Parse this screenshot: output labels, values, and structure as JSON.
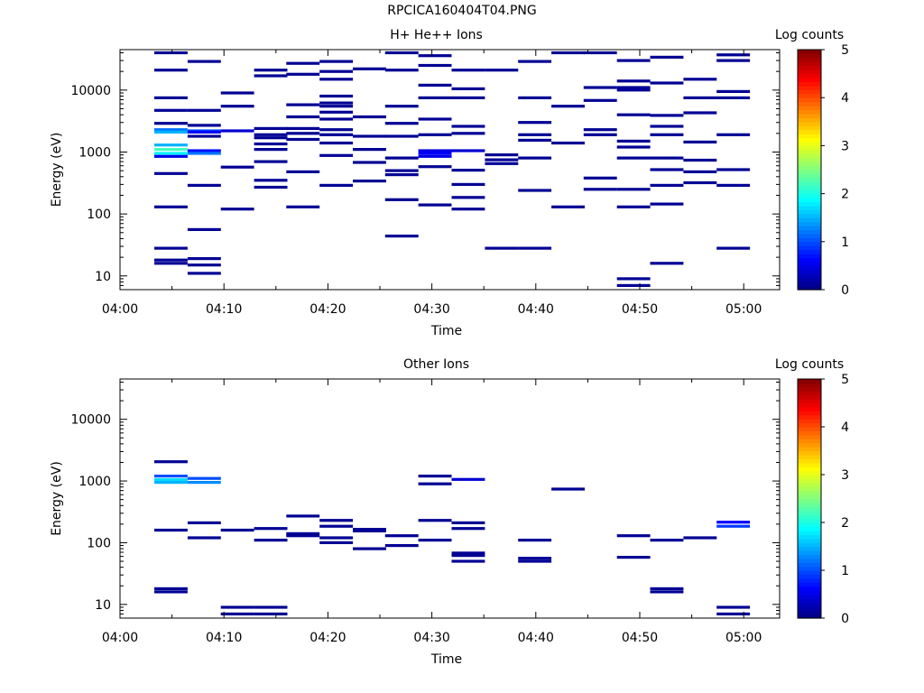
{
  "page_title": "RPCICA160404T04.PNG",
  "chart_data": [
    {
      "type": "heatmap",
      "title": "H+ He++ Ions",
      "xlabel": "Time",
      "ylabel": "Energy (eV)",
      "x_ticks": [
        "04:00",
        "04:10",
        "04:20",
        "04:30",
        "04:40",
        "04:50",
        "05:00"
      ],
      "x_range_minutes": [
        0,
        63
      ],
      "y_scale": "log",
      "y_ticks": [
        "10",
        "100",
        "1000",
        "10000"
      ],
      "y_range": [
        6,
        45000
      ],
      "colorbar": {
        "label": "Log counts",
        "ticks": [
          "0",
          "1",
          "2",
          "3",
          "4",
          "5"
        ],
        "range": [
          0,
          5
        ]
      },
      "cells": [
        [
          3.3,
          40000,
          0.1
        ],
        [
          3.3,
          21000,
          0.1
        ],
        [
          3.3,
          7500,
          0.1
        ],
        [
          3.3,
          4700,
          0.1
        ],
        [
          3.3,
          2900,
          0.1
        ],
        [
          3.3,
          2300,
          1.2
        ],
        [
          3.3,
          2100,
          1.5
        ],
        [
          3.3,
          1300,
          1.5
        ],
        [
          3.3,
          1100,
          2.2
        ],
        [
          3.3,
          950,
          1.8
        ],
        [
          3.3,
          850,
          0.5
        ],
        [
          3.3,
          450,
          0.1
        ],
        [
          3.3,
          130,
          0.1
        ],
        [
          3.3,
          28,
          0.1
        ],
        [
          3.3,
          18,
          0.1
        ],
        [
          3.3,
          16,
          0.1
        ],
        [
          6.5,
          29000,
          0.1
        ],
        [
          6.5,
          4700,
          0.1
        ],
        [
          6.5,
          2700,
          0.1
        ],
        [
          6.5,
          2200,
          1.0
        ],
        [
          6.5,
          2100,
          0.6
        ],
        [
          6.5,
          1800,
          0.1
        ],
        [
          6.5,
          1050,
          0.7
        ],
        [
          6.5,
          950,
          1.2
        ],
        [
          6.5,
          290,
          0.1
        ],
        [
          6.5,
          56,
          0.1
        ],
        [
          6.5,
          19,
          0.1
        ],
        [
          6.5,
          15,
          0.1
        ],
        [
          6.5,
          11,
          0.1
        ],
        [
          9.7,
          9000,
          0.1
        ],
        [
          9.7,
          5500,
          0.1
        ],
        [
          9.7,
          2200,
          0.4
        ],
        [
          9.7,
          570,
          0.1
        ],
        [
          9.7,
          120,
          0.1
        ],
        [
          12.9,
          21000,
          0.1
        ],
        [
          12.9,
          17000,
          0.1
        ],
        [
          12.9,
          2400,
          0.1
        ],
        [
          12.9,
          1900,
          0.1
        ],
        [
          12.9,
          1700,
          0.1
        ],
        [
          12.9,
          1350,
          0.1
        ],
        [
          12.9,
          1100,
          0.1
        ],
        [
          12.9,
          700,
          0.1
        ],
        [
          12.9,
          350,
          0.1
        ],
        [
          12.9,
          270,
          0.1
        ],
        [
          16.0,
          27000,
          0.1
        ],
        [
          16.0,
          18000,
          0.1
        ],
        [
          16.0,
          5800,
          0.1
        ],
        [
          16.0,
          3700,
          0.1
        ],
        [
          16.0,
          2400,
          0.1
        ],
        [
          16.0,
          2000,
          0.1
        ],
        [
          16.0,
          1600,
          0.1
        ],
        [
          16.0,
          480,
          0.1
        ],
        [
          16.0,
          130,
          0.1
        ],
        [
          19.2,
          29000,
          0.1
        ],
        [
          19.2,
          20000,
          0.1
        ],
        [
          19.2,
          15000,
          0.1
        ],
        [
          19.2,
          8000,
          0.1
        ],
        [
          19.2,
          6200,
          0.1
        ],
        [
          19.2,
          5500,
          0.1
        ],
        [
          19.2,
          4400,
          0.1
        ],
        [
          19.2,
          3400,
          0.1
        ],
        [
          19.2,
          2300,
          0.1
        ],
        [
          19.2,
          1900,
          0.1
        ],
        [
          19.2,
          1400,
          0.1
        ],
        [
          19.2,
          880,
          0.1
        ],
        [
          19.2,
          290,
          0.1
        ],
        [
          22.4,
          22000,
          0.1
        ],
        [
          22.4,
          3700,
          0.1
        ],
        [
          22.4,
          1800,
          0.1
        ],
        [
          22.4,
          1100,
          0.1
        ],
        [
          22.4,
          680,
          0.1
        ],
        [
          22.4,
          340,
          0.1
        ],
        [
          25.5,
          40000,
          0.1
        ],
        [
          25.5,
          21000,
          0.1
        ],
        [
          25.5,
          5500,
          0.1
        ],
        [
          25.5,
          2900,
          0.1
        ],
        [
          25.5,
          1800,
          0.1
        ],
        [
          25.5,
          800,
          0.1
        ],
        [
          25.5,
          500,
          0.1
        ],
        [
          25.5,
          430,
          0.1
        ],
        [
          25.5,
          170,
          0.1
        ],
        [
          25.5,
          44,
          0.1
        ],
        [
          28.7,
          36000,
          0.1
        ],
        [
          28.7,
          25000,
          0.1
        ],
        [
          28.7,
          12000,
          0.1
        ],
        [
          28.7,
          7500,
          0.1
        ],
        [
          28.7,
          3400,
          0.1
        ],
        [
          28.7,
          1900,
          0.1
        ],
        [
          28.7,
          1050,
          0.5
        ],
        [
          28.7,
          950,
          0.6
        ],
        [
          28.7,
          850,
          0.5
        ],
        [
          28.7,
          580,
          0.1
        ],
        [
          28.7,
          140,
          0.1
        ],
        [
          31.9,
          21000,
          0.1
        ],
        [
          31.9,
          10500,
          0.1
        ],
        [
          31.9,
          7500,
          0.1
        ],
        [
          31.9,
          2600,
          0.1
        ],
        [
          31.9,
          2000,
          0.1
        ],
        [
          31.9,
          1050,
          0.4
        ],
        [
          31.9,
          510,
          0.1
        ],
        [
          31.9,
          300,
          0.1
        ],
        [
          31.9,
          185,
          0.1
        ],
        [
          31.9,
          120,
          0.1
        ],
        [
          35.1,
          21000,
          0.1
        ],
        [
          35.1,
          900,
          0.1
        ],
        [
          35.1,
          750,
          0.1
        ],
        [
          35.1,
          650,
          0.1
        ],
        [
          35.1,
          28,
          0.1
        ],
        [
          38.3,
          29000,
          0.1
        ],
        [
          38.3,
          7500,
          0.1
        ],
        [
          38.3,
          3000,
          0.1
        ],
        [
          38.3,
          1900,
          0.1
        ],
        [
          38.3,
          1550,
          0.1
        ],
        [
          38.3,
          800,
          0.1
        ],
        [
          38.3,
          240,
          0.1
        ],
        [
          38.3,
          28,
          0.1
        ],
        [
          41.5,
          40000,
          0.1
        ],
        [
          41.5,
          5500,
          0.1
        ],
        [
          41.5,
          1400,
          0.1
        ],
        [
          41.5,
          130,
          0.1
        ],
        [
          44.6,
          40000,
          0.1
        ],
        [
          44.6,
          11000,
          0.1
        ],
        [
          44.6,
          6800,
          0.1
        ],
        [
          44.6,
          2300,
          0.1
        ],
        [
          44.6,
          1900,
          0.1
        ],
        [
          44.6,
          380,
          0.1
        ],
        [
          44.6,
          250,
          0.1
        ],
        [
          47.8,
          30000,
          0.1
        ],
        [
          47.8,
          14000,
          0.1
        ],
        [
          47.8,
          11000,
          0.1
        ],
        [
          47.8,
          10000,
          0.1
        ],
        [
          47.8,
          4000,
          0.1
        ],
        [
          47.8,
          1500,
          0.1
        ],
        [
          47.8,
          1200,
          0.1
        ],
        [
          47.8,
          800,
          0.1
        ],
        [
          47.8,
          250,
          0.1
        ],
        [
          47.8,
          130,
          0.1
        ],
        [
          47.8,
          9,
          0.1
        ],
        [
          47.8,
          7,
          0.1
        ],
        [
          51.0,
          34000,
          0.1
        ],
        [
          51.0,
          13000,
          0.1
        ],
        [
          51.0,
          3900,
          0.1
        ],
        [
          51.0,
          2600,
          0.1
        ],
        [
          51.0,
          1900,
          0.1
        ],
        [
          51.0,
          800,
          0.1
        ],
        [
          51.0,
          520,
          0.1
        ],
        [
          51.0,
          290,
          0.1
        ],
        [
          51.0,
          145,
          0.1
        ],
        [
          51.0,
          16,
          0.1
        ],
        [
          54.2,
          15000,
          0.1
        ],
        [
          54.2,
          7500,
          0.1
        ],
        [
          54.2,
          4300,
          0.1
        ],
        [
          54.2,
          1450,
          0.1
        ],
        [
          54.2,
          740,
          0.1
        ],
        [
          54.2,
          480,
          0.1
        ],
        [
          54.2,
          320,
          0.1
        ],
        [
          57.4,
          37000,
          0.1
        ],
        [
          57.4,
          30000,
          0.1
        ],
        [
          57.4,
          9500,
          0.1
        ],
        [
          57.4,
          7500,
          0.1
        ],
        [
          57.4,
          1900,
          0.1
        ],
        [
          57.4,
          520,
          0.1
        ],
        [
          57.4,
          290,
          0.1
        ],
        [
          57.4,
          28,
          0.1
        ]
      ]
    },
    {
      "type": "heatmap",
      "title": "Other Ions",
      "xlabel": "Time",
      "ylabel": "Energy (eV)",
      "x_ticks": [
        "04:00",
        "04:10",
        "04:20",
        "04:30",
        "04:40",
        "04:50",
        "05:00"
      ],
      "x_range_minutes": [
        0,
        63
      ],
      "y_scale": "log",
      "y_ticks": [
        "10",
        "100",
        "1000",
        "10000"
      ],
      "y_range": [
        6,
        45000
      ],
      "colorbar": {
        "label": "Log counts",
        "ticks": [
          "0",
          "1",
          "2",
          "3",
          "4",
          "5"
        ],
        "range": [
          0,
          5
        ]
      },
      "cells": [
        [
          3.3,
          2050,
          0.1
        ],
        [
          3.3,
          1200,
          1.0
        ],
        [
          3.3,
          1050,
          1.7
        ],
        [
          3.3,
          950,
          1.5
        ],
        [
          3.3,
          160,
          0.1
        ],
        [
          3.3,
          18,
          0.1
        ],
        [
          3.3,
          16,
          0.1
        ],
        [
          6.5,
          1100,
          1.0
        ],
        [
          6.5,
          950,
          1.3
        ],
        [
          6.5,
          210,
          0.1
        ],
        [
          6.5,
          120,
          0.1
        ],
        [
          9.7,
          160,
          0.1
        ],
        [
          9.7,
          9,
          0.1
        ],
        [
          9.7,
          7,
          0.1
        ],
        [
          12.9,
          170,
          0.1
        ],
        [
          12.9,
          110,
          0.1
        ],
        [
          12.9,
          9,
          0.1
        ],
        [
          12.9,
          7,
          0.1
        ],
        [
          16.0,
          270,
          0.1
        ],
        [
          16.0,
          140,
          0.1
        ],
        [
          16.0,
          130,
          0.1
        ],
        [
          19.2,
          230,
          0.1
        ],
        [
          19.2,
          185,
          0.1
        ],
        [
          19.2,
          120,
          0.1
        ],
        [
          19.2,
          100,
          0.1
        ],
        [
          22.4,
          165,
          0.1
        ],
        [
          22.4,
          155,
          0.1
        ],
        [
          22.4,
          80,
          0.1
        ],
        [
          25.5,
          130,
          0.1
        ],
        [
          25.5,
          90,
          0.1
        ],
        [
          28.7,
          230,
          0.1
        ],
        [
          28.7,
          1200,
          0.1
        ],
        [
          28.7,
          900,
          0.1
        ],
        [
          28.7,
          110,
          0.1
        ],
        [
          31.9,
          1060,
          0.4
        ],
        [
          31.9,
          210,
          0.1
        ],
        [
          31.9,
          170,
          0.1
        ],
        [
          31.9,
          68,
          0.1
        ],
        [
          31.9,
          62,
          0.1
        ],
        [
          31.9,
          50,
          0.1
        ],
        [
          38.3,
          110,
          0.1
        ],
        [
          38.3,
          56,
          0.1
        ],
        [
          38.3,
          50,
          0.1
        ],
        [
          41.5,
          740,
          0.1
        ],
        [
          47.8,
          130,
          0.1
        ],
        [
          47.8,
          58,
          0.1
        ],
        [
          51.0,
          110,
          0.1
        ],
        [
          51.0,
          18,
          0.1
        ],
        [
          51.0,
          16,
          0.1
        ],
        [
          54.2,
          120,
          0.1
        ],
        [
          57.4,
          215,
          0.6
        ],
        [
          57.4,
          185,
          0.9
        ],
        [
          57.4,
          9,
          0.1
        ],
        [
          57.4,
          7,
          0.1
        ]
      ]
    }
  ]
}
